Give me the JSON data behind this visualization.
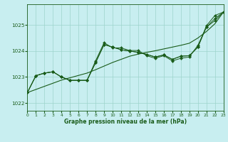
{
  "title": "Graphe pression niveau de la mer (hPa)",
  "bg_color": "#c8eef0",
  "grid_color": "#9dd4cc",
  "line_color": "#1a5c1a",
  "xlim": [
    0,
    23
  ],
  "ylim": [
    1021.7,
    1025.8
  ],
  "yticks": [
    1022,
    1023,
    1024,
    1025
  ],
  "xticks": [
    0,
    1,
    2,
    3,
    4,
    5,
    6,
    7,
    8,
    9,
    10,
    11,
    12,
    13,
    14,
    15,
    16,
    17,
    18,
    19,
    20,
    21,
    22,
    23
  ],
  "line_straight": [
    1022.4,
    1022.52,
    1022.64,
    1022.76,
    1022.88,
    1022.97,
    1023.06,
    1023.15,
    1023.28,
    1023.42,
    1023.56,
    1023.68,
    1023.8,
    1023.88,
    1023.95,
    1024.01,
    1024.08,
    1024.15,
    1024.22,
    1024.3,
    1024.5,
    1024.75,
    1025.05,
    1025.5
  ],
  "line_a": [
    1022.4,
    1023.05,
    1023.15,
    1023.2,
    1023.0,
    1022.87,
    1022.87,
    1022.87,
    1023.55,
    1024.25,
    1024.15,
    1024.05,
    1024.0,
    1023.95,
    1023.87,
    1023.77,
    1023.85,
    1023.68,
    1023.8,
    1023.82,
    1024.15,
    1024.97,
    1025.37,
    1025.5
  ],
  "line_b": [
    1022.4,
    1023.05,
    1023.15,
    1023.2,
    1023.0,
    1022.87,
    1022.87,
    1022.87,
    1023.55,
    1024.25,
    1024.15,
    1024.05,
    1024.0,
    1023.95,
    1023.87,
    1023.77,
    1023.85,
    1023.68,
    1023.8,
    1023.82,
    1024.15,
    1024.92,
    1025.25,
    1025.5
  ],
  "line_c": [
    1022.4,
    1023.05,
    1023.15,
    1023.2,
    1023.0,
    1022.87,
    1022.87,
    1022.87,
    1023.62,
    1024.32,
    1024.12,
    1024.12,
    1024.02,
    1024.02,
    1023.82,
    1023.72,
    1023.82,
    1023.62,
    1023.72,
    1023.77,
    1024.22,
    1024.92,
    1025.17,
    1025.5
  ]
}
